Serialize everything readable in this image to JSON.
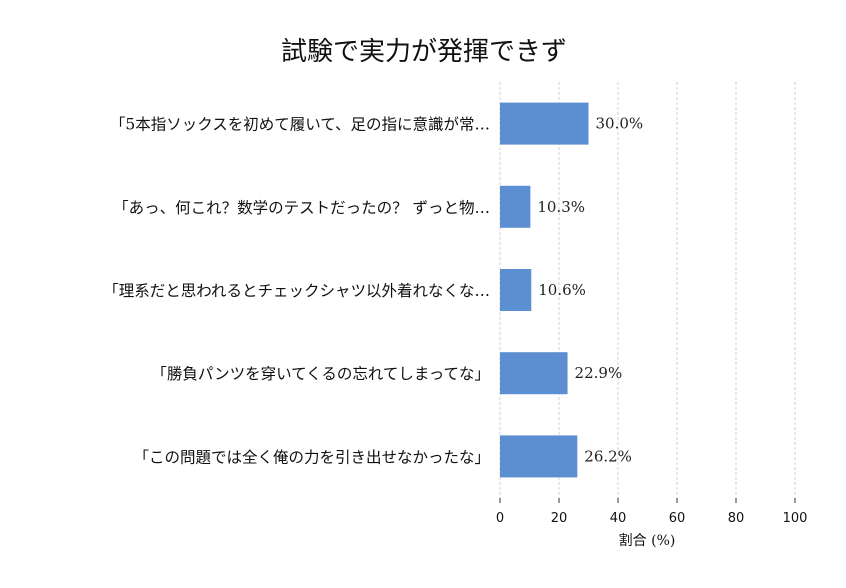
{
  "chart_data": {
    "type": "bar",
    "orientation": "horizontal",
    "title": "試験で実力が発揮できず",
    "categories": [
      "「5本指ソックスを初めて履いて、足の指に意識が常…",
      "「あっ、何これ？数学のテストだったの？ ずっと物…",
      "「理系だと思われるとチェックシャツ以外着れなくな…",
      "「勝負パンツを穿いてくるの忘れてしまってな」",
      "「この問題では全く俺の力を引き出せなかったな」"
    ],
    "values": [
      30.0,
      10.3,
      10.6,
      22.9,
      26.2
    ],
    "value_labels": [
      "30.0%",
      "10.3%",
      "10.6%",
      "22.9%",
      "26.2%"
    ],
    "xlabel": "割合 (%)",
    "ylabel": "",
    "xlim": [
      0,
      100
    ],
    "xticks": [
      0,
      20,
      40,
      60,
      80,
      100
    ],
    "xtick_labels": [
      "0",
      "20",
      "40",
      "60",
      "80",
      "100"
    ],
    "grid": "vertical dashed",
    "bar_color": "#5b8fd2"
  }
}
